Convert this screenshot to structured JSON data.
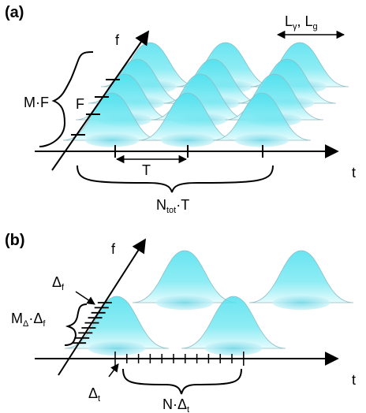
{
  "panel_a": {
    "label": "(a)",
    "f_axis": "f",
    "t_axis": "t",
    "size_label": {
      "main": "L",
      "sub1": "γ",
      "sep": ", L",
      "sub2": "g"
    },
    "mf_label": "M·F",
    "f_label": "F",
    "t_label": "T",
    "ntot_label": {
      "main": "N",
      "sub": "tot",
      "rest": "·T"
    }
  },
  "panel_b": {
    "label": "(b)",
    "f_axis": "f",
    "t_axis": "t",
    "delta_f": {
      "main": "Δ",
      "sub": "f"
    },
    "mdelta_label": {
      "m": "M",
      "sub1": "Δ",
      "mid": "·Δ",
      "sub2": "f"
    },
    "delta_t": {
      "main": "Δ",
      "sub": "t"
    },
    "ndelta_label": {
      "main": "N·Δ",
      "sub": "t"
    }
  },
  "colors": {
    "surface": "#33d6e6",
    "surface_light": "#c8f6fa",
    "ink": "#000000"
  }
}
